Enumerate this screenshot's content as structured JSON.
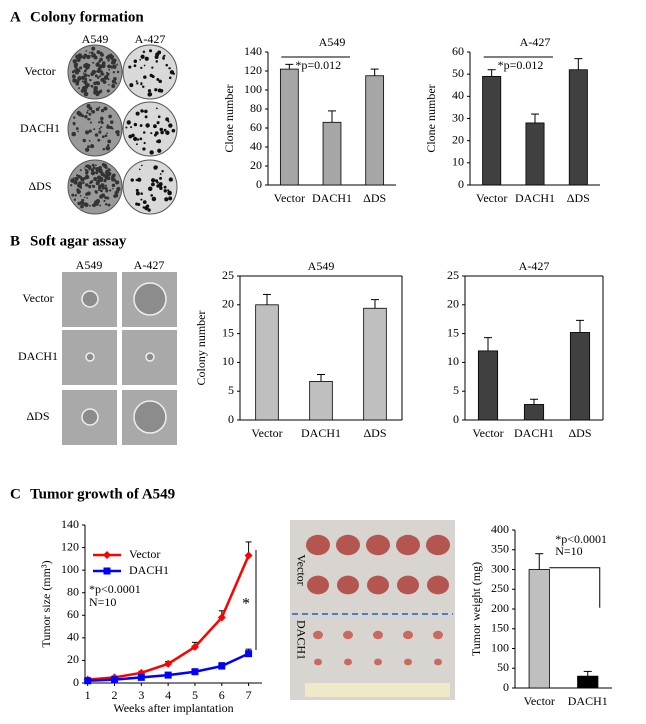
{
  "panels": [
    {
      "letter": "A",
      "title": "Colony formation"
    },
    {
      "letter": "B",
      "title": "Soft agar assay"
    },
    {
      "letter": "C",
      "title": "Tumor growth  of A549"
    }
  ],
  "colony_images": {
    "columns": [
      "A549",
      "A-427"
    ],
    "rows": [
      "Vector",
      "DACH1",
      "ΔDS"
    ]
  },
  "soft_agar_images": {
    "columns": [
      "A549",
      "A-427"
    ],
    "rows": [
      "Vector",
      "DACH1",
      "ΔDS"
    ]
  },
  "tumor_photo": {
    "rows": [
      "Vector",
      "DACH1"
    ]
  },
  "chart_data": [
    {
      "type": "bar",
      "title": "A549",
      "ylabel": "Clone number",
      "categories": [
        "Vector",
        "DACH1",
        "ΔDS"
      ],
      "values": [
        122,
        66,
        115
      ],
      "errors": [
        5,
        12,
        7
      ],
      "color": "#a6a6a6",
      "ylim": [
        0,
        140
      ],
      "yticks": [
        0,
        20,
        40,
        60,
        80,
        100,
        120,
        140
      ],
      "box": false,
      "annotations": [
        "*p=0.012"
      ]
    },
    {
      "type": "bar",
      "title": "A-427",
      "ylabel": "Clone number",
      "categories": [
        "Vector",
        "DACH1",
        "ΔDS"
      ],
      "values": [
        49,
        28,
        52
      ],
      "errors": [
        3,
        4,
        5
      ],
      "color": "#404040",
      "ylim": [
        0,
        60
      ],
      "yticks": [
        0,
        10,
        20,
        30,
        40,
        50,
        60
      ],
      "box": false,
      "annotations": [
        "*p=0.012"
      ]
    },
    {
      "type": "bar",
      "title": "A549",
      "ylabel": "Colony number",
      "categories": [
        "Vector",
        "DACH1",
        "ΔDS"
      ],
      "values": [
        20,
        6.7,
        19.4
      ],
      "errors": [
        1.8,
        1.2,
        1.5
      ],
      "color": "#bfbfbf",
      "ylim": [
        0,
        25
      ],
      "yticks": [
        0,
        5,
        10,
        15,
        20,
        25
      ],
      "box": true,
      "annotations": []
    },
    {
      "type": "bar",
      "title": "A-427",
      "categories": [
        "Vector",
        "DACH1",
        "ΔDS"
      ],
      "values": [
        12,
        2.7,
        15.2
      ],
      "errors": [
        2.3,
        0.9,
        2.1
      ],
      "color": "#404040",
      "ylim": [
        0,
        25
      ],
      "yticks": [
        0,
        5,
        10,
        15,
        20,
        25
      ],
      "box": true,
      "annotations": []
    },
    {
      "type": "line",
      "xlabel": "Weeks after implantation",
      "ylabel": "Tumor size (mm³)",
      "x": [
        1,
        2,
        3,
        4,
        5,
        6,
        7
      ],
      "xlim": [
        0.9,
        7.5
      ],
      "xticks": [
        1,
        2,
        3,
        4,
        5,
        6,
        7
      ],
      "ylim": [
        0,
        140
      ],
      "yticks": [
        0,
        20,
        40,
        60,
        80,
        100,
        120,
        140
      ],
      "series": [
        {
          "name": "Vector",
          "color": "#ff0000",
          "marker": "diamond",
          "values": [
            3,
            5,
            9,
            17,
            32,
            58,
            113
          ],
          "errors": [
            1,
            1,
            1.5,
            2,
            4,
            6,
            12
          ]
        },
        {
          "name": "DACH1",
          "color": "#0000ff",
          "marker": "square",
          "values": [
            2,
            3,
            5,
            7,
            10,
            15,
            26
          ],
          "errors": [
            1,
            1,
            1,
            1.5,
            2,
            3,
            4
          ]
        }
      ],
      "annotations": [
        "*p<0.0001",
        "N=10",
        "*"
      ]
    },
    {
      "type": "bar",
      "ylabel": "Tumor  weight  (mg)",
      "categories": [
        "Vector",
        "DACH1"
      ],
      "values": [
        300,
        30
      ],
      "errors": [
        40,
        12
      ],
      "colors": [
        "#bfbfbf",
        "#000000"
      ],
      "ylim": [
        0,
        400
      ],
      "yticks": [
        0,
        50,
        100,
        150,
        200,
        250,
        300,
        350,
        400
      ],
      "box": false,
      "annotations": [
        "*p<0.0001",
        "N=10"
      ]
    }
  ]
}
